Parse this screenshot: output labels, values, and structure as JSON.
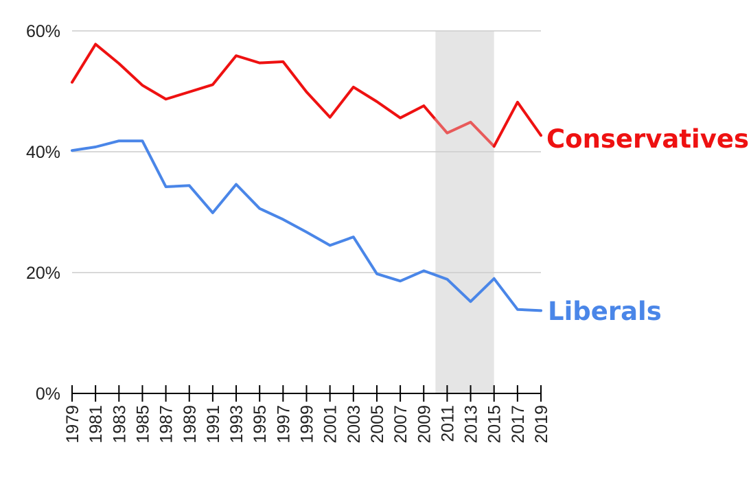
{
  "chart_data": {
    "type": "line",
    "title": "",
    "xlabel": "",
    "ylabel": "",
    "x": [
      1979,
      1981,
      1983,
      1985,
      1987,
      1989,
      1991,
      1993,
      1995,
      1997,
      1999,
      2001,
      2003,
      2005,
      2007,
      2009,
      2011,
      2013,
      2015,
      2017,
      2019
    ],
    "xtick_labels": [
      "1979",
      "1981",
      "1983",
      "1985",
      "1987",
      "1989",
      "1991",
      "1993",
      "1995",
      "1997",
      "1999",
      "2001",
      "2003",
      "2005",
      "2007",
      "2009",
      "2011",
      "2013",
      "2015",
      "2017",
      "2019"
    ],
    "ylim": [
      0,
      60
    ],
    "yticks": [
      0,
      20,
      40,
      60
    ],
    "ytick_labels": [
      "0%",
      "20%",
      "40%",
      "60%"
    ],
    "grid": true,
    "highlight_band": {
      "x_start": 2010,
      "x_end": 2015,
      "color": "#e5e5e5"
    },
    "series": [
      {
        "name": "Conservatives",
        "color": "#ee1111",
        "highlight_color": "#e85a5a",
        "values": [
          51.5,
          57.8,
          54.6,
          51.0,
          48.7,
          49.9,
          51.1,
          55.9,
          54.7,
          54.9,
          49.9,
          45.7,
          50.7,
          48.3,
          45.6,
          47.6,
          43.1,
          44.9,
          40.9,
          48.2,
          42.7
        ]
      },
      {
        "name": "Liberals",
        "color": "#4a86e8",
        "highlight_color": "#4a86e8",
        "values": [
          40.2,
          40.8,
          41.8,
          41.8,
          34.2,
          34.4,
          29.9,
          34.6,
          30.6,
          28.8,
          26.7,
          24.5,
          25.9,
          19.8,
          18.6,
          20.3,
          18.9,
          15.2,
          19.0,
          13.9,
          13.7
        ]
      }
    ]
  }
}
